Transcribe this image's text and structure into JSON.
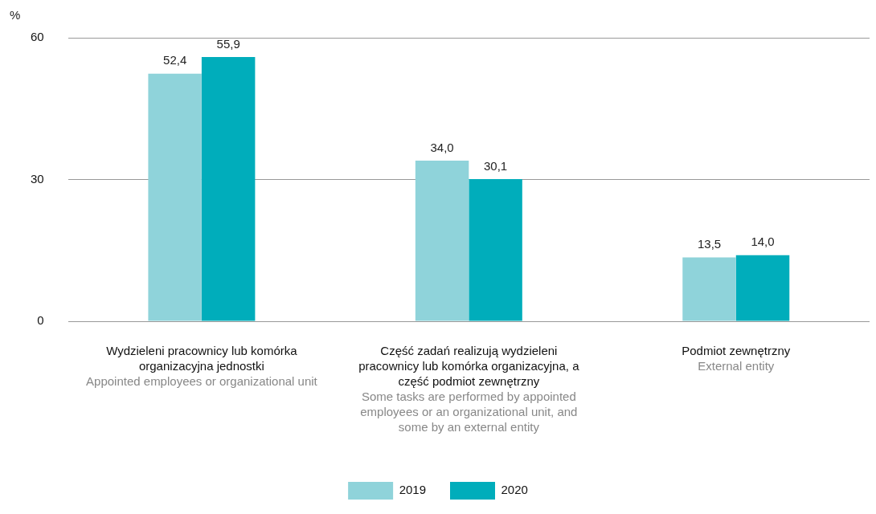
{
  "chart_data": {
    "type": "bar",
    "ylabel": "%",
    "categories": [
      "Wydzieleni pracownicy lub komórka organizacyjna jednostki\nAppointed employees or organizational unit",
      "Część zadań realizują wydzieleni pracownicy lub komórka organizacyjna, a część podmiot zewnętrzny\nSome tasks are performed by appointed employees or an organizational unit, and some by an external entity",
      "Podmiot zewnętrzny\nExternal entity"
    ],
    "series": [
      {
        "name": "2019",
        "color": "#8fd3da",
        "values": [
          52.4,
          34.0,
          13.5
        ],
        "value_labels": [
          "52,4",
          "34,0",
          "13,5"
        ]
      },
      {
        "name": "2020",
        "color": "#00adbb",
        "values": [
          55.9,
          30.1,
          14.0
        ],
        "value_labels": [
          "55,9",
          "30,1",
          "14,0"
        ]
      }
    ],
    "ylim": [
      0,
      60
    ],
    "yticks": [
      0,
      30,
      60
    ],
    "grid": "y",
    "legend": "bottom"
  }
}
